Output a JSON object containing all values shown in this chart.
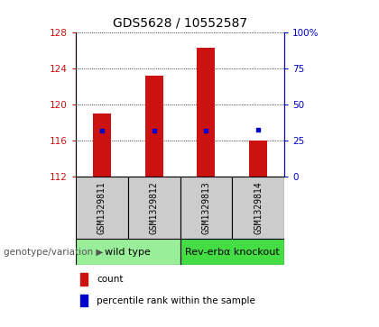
{
  "title": "GDS5628 / 10552587",
  "samples": [
    "GSM1329811",
    "GSM1329812",
    "GSM1329813",
    "GSM1329814"
  ],
  "bar_bottom": 112,
  "bar_tops": [
    119.0,
    123.2,
    126.3,
    116.0
  ],
  "blue_dots": [
    117.1,
    117.1,
    117.1,
    117.2
  ],
  "ylim_left": [
    112,
    128
  ],
  "ylim_right": [
    0,
    100
  ],
  "yticks_left": [
    112,
    116,
    120,
    124,
    128
  ],
  "yticks_right": [
    0,
    25,
    50,
    75,
    100
  ],
  "bar_color": "#cc1111",
  "dot_color": "#0000cc",
  "groups": [
    {
      "label": "wild type",
      "sample_indices": [
        0,
        1
      ],
      "color": "#99ee99"
    },
    {
      "label": "Rev-erbα knockout",
      "sample_indices": [
        2,
        3
      ],
      "color": "#44dd44"
    }
  ],
  "group_label": "genotype/variation",
  "legend_count_label": "count",
  "legend_pct_label": "percentile rank within the sample",
  "bar_width": 0.35,
  "title_fontsize": 10,
  "tick_fontsize": 7.5,
  "label_fontsize": 7.5,
  "group_fontsize": 8,
  "sample_label_fontsize": 7,
  "sample_bg_color": "#cccccc",
  "plot_bg_color": "#ffffff",
  "left_tick_color": "#cc1111",
  "right_tick_color": "#0000cc"
}
